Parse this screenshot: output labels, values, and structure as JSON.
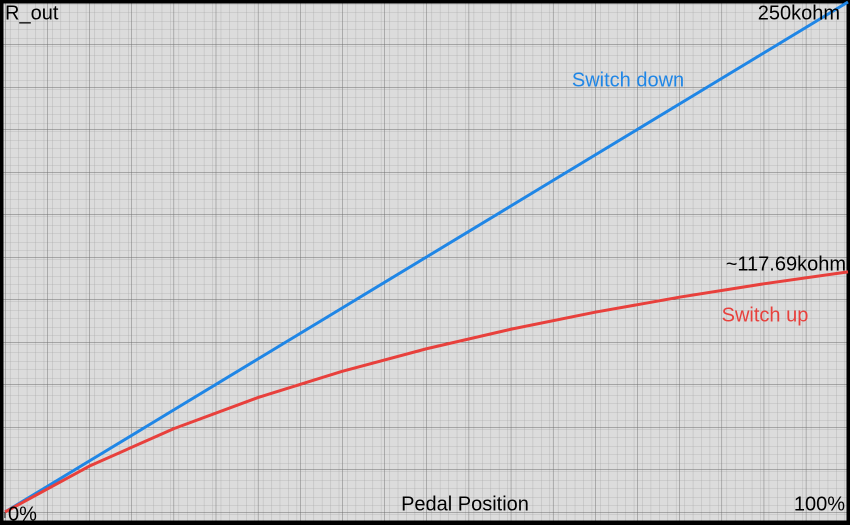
{
  "chart_data": {
    "type": "line",
    "title": "R_out",
    "x_label": "Pedal Position",
    "x": [
      0,
      10,
      20,
      30,
      40,
      50,
      60,
      70,
      80,
      90,
      100
    ],
    "series": [
      {
        "name": "Switch down",
        "color": "#1f86e6",
        "values": [
          0,
          25,
          50,
          75,
          100,
          125,
          150,
          175,
          200,
          225,
          250
        ]
      },
      {
        "name": "Switch up",
        "color": "#e8403c",
        "values": [
          0,
          22.47,
          40.82,
          56.09,
          68.98,
          80.03,
          89.58,
          97.94,
          105.3,
          111.85,
          117.69
        ]
      }
    ],
    "annotations": [
      "250kohm",
      "~117.69kohm"
    ],
    "xlim": [
      0,
      100
    ],
    "ylim": [
      0,
      250
    ],
    "xticks": [
      {
        "value": 0,
        "label": "0%"
      },
      {
        "value": 100,
        "label": "100%"
      }
    ],
    "grid": true
  }
}
